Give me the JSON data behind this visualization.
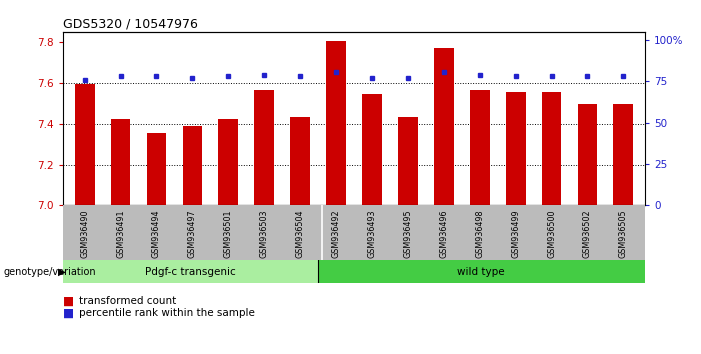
{
  "title": "GDS5320 / 10547976",
  "samples": [
    "GSM936490",
    "GSM936491",
    "GSM936494",
    "GSM936497",
    "GSM936501",
    "GSM936503",
    "GSM936504",
    "GSM936492",
    "GSM936493",
    "GSM936495",
    "GSM936496",
    "GSM936498",
    "GSM936499",
    "GSM936500",
    "GSM936502",
    "GSM936505"
  ],
  "bar_values": [
    7.595,
    7.425,
    7.355,
    7.39,
    7.425,
    7.565,
    7.435,
    7.805,
    7.545,
    7.435,
    7.77,
    7.565,
    7.555,
    7.555,
    7.495,
    7.495
  ],
  "dot_values": [
    76,
    78,
    78,
    77,
    78,
    79,
    78,
    81,
    77,
    77,
    81,
    79,
    78,
    78,
    78,
    78
  ],
  "bar_color": "#CC0000",
  "dot_color": "#2222CC",
  "group1_label": "Pdgf-c transgenic",
  "group2_label": "wild type",
  "group1_count": 7,
  "group2_count": 9,
  "group1_color": "#AAEEA0",
  "group2_color": "#44CC44",
  "genotype_label": "genotype/variation",
  "ylim_left": [
    7.0,
    7.85
  ],
  "ylim_right": [
    0,
    105
  ],
  "yticks_left": [
    7.0,
    7.2,
    7.4,
    7.6,
    7.8
  ],
  "yticks_right": [
    0,
    25,
    50,
    75,
    100
  ],
  "ytick_labels_right": [
    "0",
    "25",
    "50",
    "75",
    "100%"
  ],
  "legend_items": [
    "transformed count",
    "percentile rank within the sample"
  ],
  "bar_width": 0.55
}
